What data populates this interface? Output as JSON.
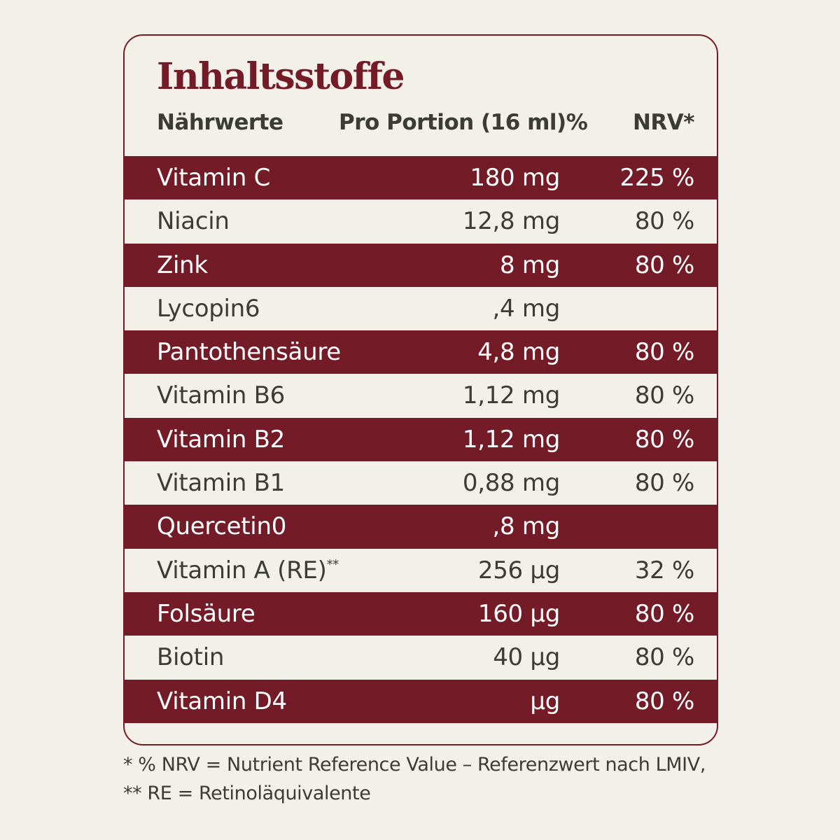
{
  "title": "Inhaltsstoffe",
  "colors": {
    "accent": "#741b28",
    "background": "#f3f0ea",
    "text": "#3c3c37"
  },
  "header": {
    "name": "Nährwerte",
    "portion": "Pro Portion (16 ml)%",
    "nrv": "NRV*"
  },
  "rows": [
    {
      "name": "Vitamin C",
      "sup": "",
      "amount": "180 mg",
      "nrv": "225 %"
    },
    {
      "name": "Niacin",
      "sup": "",
      "amount": "12,8 mg",
      "nrv": "80 %"
    },
    {
      "name": "Zink",
      "sup": "",
      "amount": "8 mg",
      "nrv": "80 %"
    },
    {
      "name": "Lycopin6",
      "sup": "",
      "amount": ",4 mg",
      "nrv": ""
    },
    {
      "name": "Pantothensäure",
      "sup": "",
      "amount": "4,8 mg",
      "nrv": "80 %"
    },
    {
      "name": "Vitamin B6",
      "sup": "",
      "amount": "1,12 mg",
      "nrv": "80 %"
    },
    {
      "name": "Vitamin B2",
      "sup": "",
      "amount": "1,12 mg",
      "nrv": "80 %"
    },
    {
      "name": "Vitamin B1",
      "sup": "",
      "amount": "0,88 mg",
      "nrv": "80 %"
    },
    {
      "name": "Quercetin0",
      "sup": "",
      "amount": ",8 mg",
      "nrv": ""
    },
    {
      "name": "Vitamin A (RE)",
      "sup": "**",
      "amount": "256 µg",
      "nrv": "32 %"
    },
    {
      "name": "Folsäure",
      "sup": "",
      "amount": "160 µg",
      "nrv": "80 %"
    },
    {
      "name": "Biotin",
      "sup": "",
      "amount": "40 µg",
      "nrv": "80 %"
    },
    {
      "name": "Vitamin D4",
      "sup": "",
      "amount": "µg",
      "nrv": "80 %"
    }
  ],
  "footnotes": [
    "* % NRV = Nutrient Reference Value – Referenzwert nach LMIV,",
    "** RE = Retinoläquivalente"
  ]
}
